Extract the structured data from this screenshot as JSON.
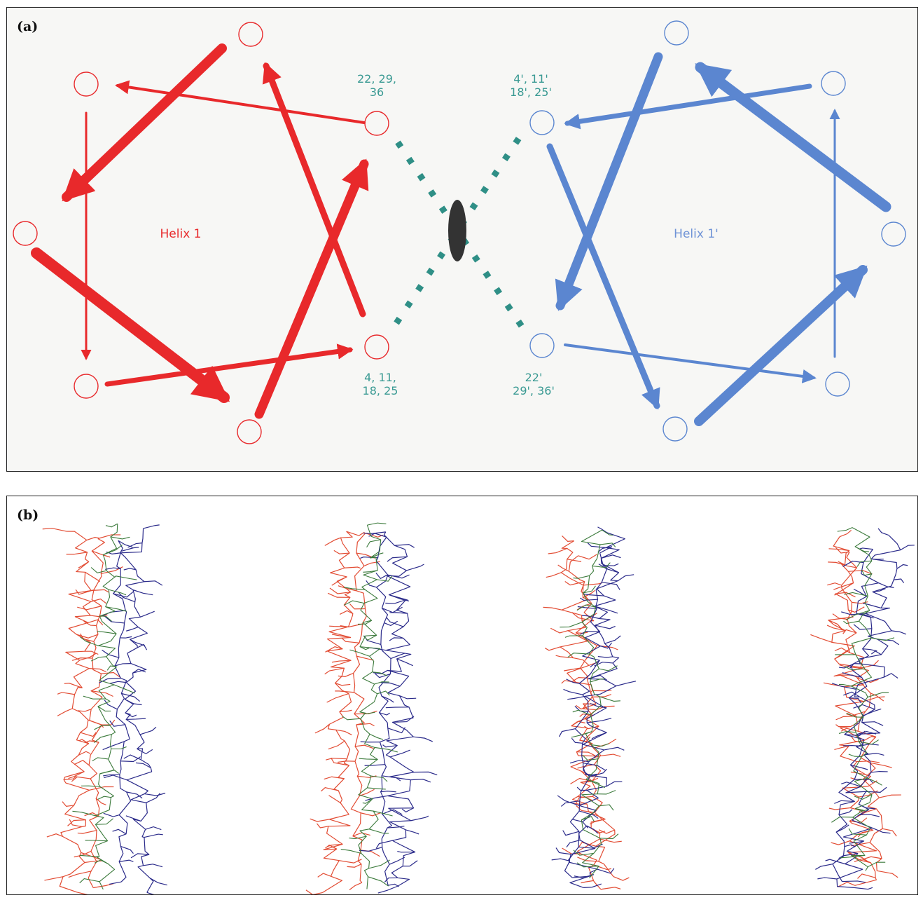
{
  "panel_a": {
    "label": "(a)",
    "helix_left": {
      "name": "Helix 1",
      "top_residues_line1": "22, 29,",
      "top_residues_line2": "36",
      "bottom_residues_line1": "4, 11,",
      "bottom_residues_line2": "18, 25"
    },
    "helix_right": {
      "name": "Helix 1'",
      "top_residues_line1": "4', 11'",
      "top_residues_line2": "18', 25'",
      "bottom_residues_line1": "22'",
      "bottom_residues_line2": "29', 36'"
    }
  },
  "panel_b": {
    "label": "(b)"
  },
  "colors": {
    "helix_left": "#e8292b",
    "helix_right": "#5b86d0",
    "residue_label": "#3a9a93",
    "interaction": "#2f8f86",
    "symmetry_axis": "#333333",
    "chain_red": "#e24b32",
    "chain_blue": "#2a2a8a",
    "chain_green": "#3b7a3b"
  }
}
